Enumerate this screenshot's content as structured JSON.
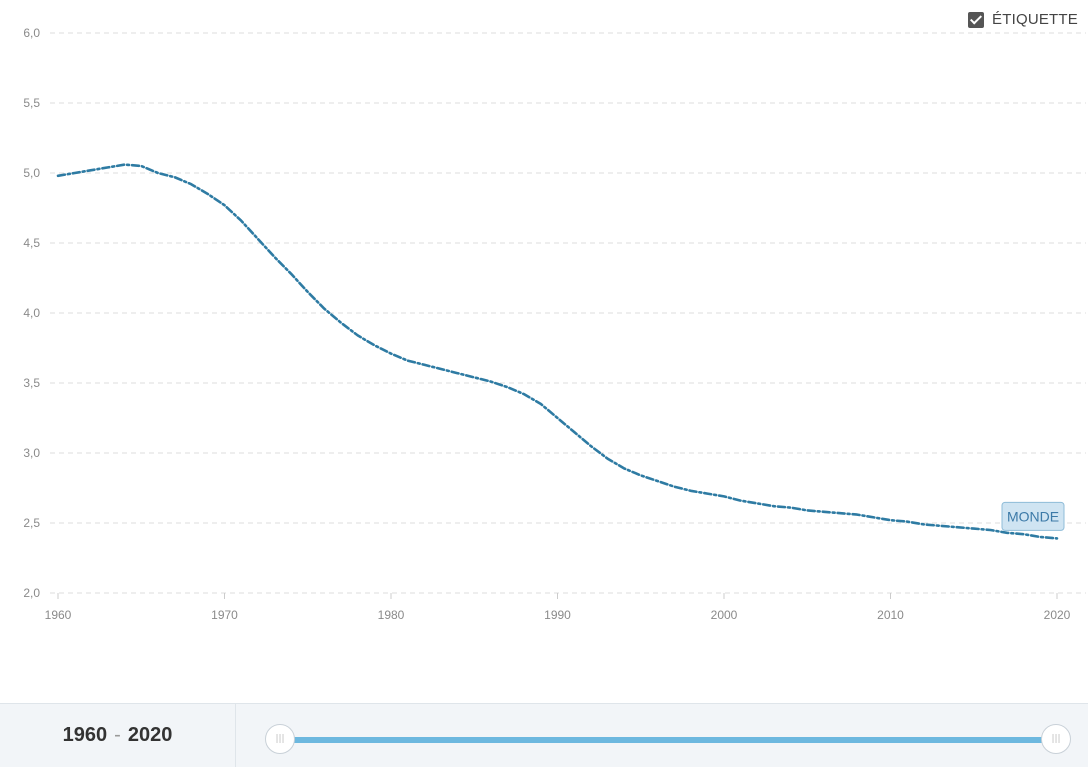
{
  "chart_data": {
    "type": "line",
    "title": "",
    "xlabel": "",
    "ylabel": "",
    "xlim": [
      1960,
      2020
    ],
    "ylim": [
      2.0,
      6.0
    ],
    "grid": true,
    "x_ticks": [
      "1960",
      "1970",
      "1980",
      "1990",
      "2000",
      "2010",
      "2020"
    ],
    "y_ticks": [
      "6,0",
      "5,5",
      "5,0",
      "4,5",
      "4,0",
      "3,5",
      "3,0",
      "2,5",
      "2,0"
    ],
    "series": [
      {
        "name": "MONDE",
        "color": "#2e7ba3",
        "x": [
          1960,
          1961,
          1962,
          1963,
          1964,
          1965,
          1966,
          1967,
          1968,
          1969,
          1970,
          1971,
          1972,
          1973,
          1974,
          1975,
          1976,
          1977,
          1978,
          1979,
          1980,
          1981,
          1982,
          1983,
          1984,
          1985,
          1986,
          1987,
          1988,
          1989,
          1990,
          1991,
          1992,
          1993,
          1994,
          1995,
          1996,
          1997,
          1998,
          1999,
          2000,
          2001,
          2002,
          2003,
          2004,
          2005,
          2006,
          2007,
          2008,
          2009,
          2010,
          2011,
          2012,
          2013,
          2014,
          2015,
          2016,
          2017,
          2018,
          2019,
          2020
        ],
        "y": [
          4.98,
          5.0,
          5.02,
          5.04,
          5.06,
          5.05,
          5.0,
          4.97,
          4.92,
          4.85,
          4.77,
          4.66,
          4.53,
          4.4,
          4.28,
          4.15,
          4.03,
          3.93,
          3.84,
          3.77,
          3.71,
          3.66,
          3.63,
          3.6,
          3.57,
          3.54,
          3.51,
          3.47,
          3.42,
          3.35,
          3.25,
          3.15,
          3.05,
          2.96,
          2.89,
          2.84,
          2.8,
          2.76,
          2.73,
          2.71,
          2.69,
          2.66,
          2.64,
          2.62,
          2.61,
          2.59,
          2.58,
          2.57,
          2.56,
          2.54,
          2.52,
          2.51,
          2.49,
          2.48,
          2.47,
          2.46,
          2.45,
          2.43,
          2.42,
          2.4,
          2.39
        ]
      }
    ]
  },
  "controls": {
    "label_toggle": "ÉTIQUETTE",
    "label_checked": true,
    "range_start": "1960",
    "range_separator": "-",
    "range_end": "2020"
  }
}
